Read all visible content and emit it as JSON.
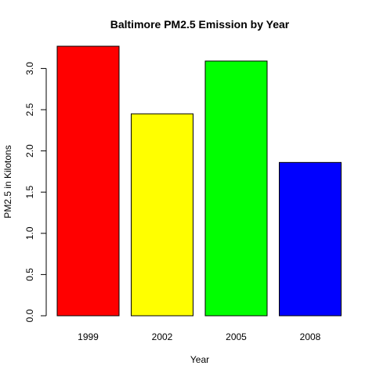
{
  "chart_data": {
    "type": "bar",
    "title": "Baltimore PM2.5 Emission by Year",
    "xlabel": "Year",
    "ylabel": "PM2.5 in Kilotons",
    "categories": [
      "1999",
      "2002",
      "2005",
      "2008"
    ],
    "values": [
      3.27,
      2.45,
      3.09,
      1.86
    ],
    "colors": [
      "#ff0000",
      "#ffff00",
      "#00ff00",
      "#0000ff"
    ],
    "ylim": [
      0,
      3.27
    ],
    "yticks": [
      0.0,
      0.5,
      1.0,
      1.5,
      2.0,
      2.5,
      3.0
    ],
    "ytick_labels": [
      "0.0",
      "0.5",
      "1.0",
      "1.5",
      "2.0",
      "2.5",
      "3.0"
    ],
    "grid": false,
    "legend": "none"
  }
}
